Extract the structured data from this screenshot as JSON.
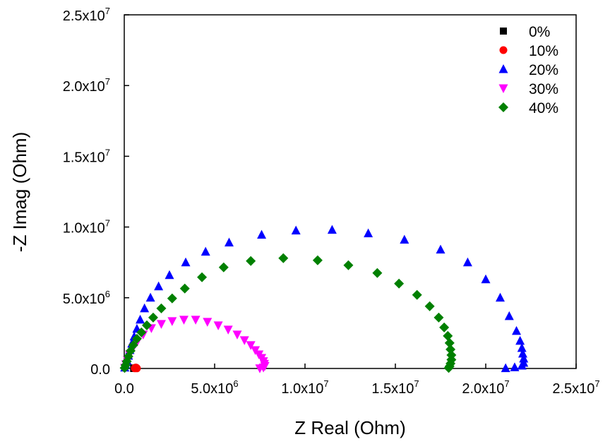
{
  "chart_data": {
    "type": "scatter",
    "title": "",
    "xlabel": "Z Real (Ohm)",
    "ylabel": "-Z Imag (Ohm)",
    "xlim": [
      0,
      25000000
    ],
    "ylim": [
      0,
      25000000
    ],
    "x_ticks": [
      {
        "value": 0,
        "mantissa": "0.0",
        "exp": ""
      },
      {
        "value": 5000000,
        "mantissa": "5.0x10",
        "exp": "6"
      },
      {
        "value": 10000000,
        "mantissa": "1.0x10",
        "exp": "7"
      },
      {
        "value": 15000000,
        "mantissa": "1.5x10",
        "exp": "7"
      },
      {
        "value": 20000000,
        "mantissa": "2.0x10",
        "exp": "7"
      },
      {
        "value": 25000000,
        "mantissa": "2.5x10",
        "exp": "7"
      }
    ],
    "y_ticks": [
      {
        "value": 0,
        "mantissa": "0.0",
        "exp": ""
      },
      {
        "value": 5000000,
        "mantissa": "5.0x10",
        "exp": "6"
      },
      {
        "value": 10000000,
        "mantissa": "1.0x10",
        "exp": "7"
      },
      {
        "value": 15000000,
        "mantissa": "1.5x10",
        "exp": "7"
      },
      {
        "value": 20000000,
        "mantissa": "2.0x10",
        "exp": "7"
      },
      {
        "value": 25000000,
        "mantissa": "2.5x10",
        "exp": "7"
      }
    ],
    "grid": false,
    "legend_position": "top-right",
    "series": [
      {
        "name": "0%",
        "color": "#000000",
        "marker": "square",
        "points": [
          [
            520000,
            0
          ],
          [
            530000,
            20000
          ],
          [
            545000,
            35000
          ],
          [
            560000,
            20000
          ],
          [
            575000,
            5000
          ]
        ]
      },
      {
        "name": "10%",
        "color": "#ff0000",
        "marker": "circle",
        "points": [
          [
            580000,
            10000
          ],
          [
            600000,
            50000
          ],
          [
            640000,
            70000
          ],
          [
            680000,
            45000
          ],
          [
            700000,
            10000
          ]
        ]
      },
      {
        "name": "20%",
        "color": "#0000ff",
        "marker": "triangle-up",
        "points": [
          [
            30000,
            60000
          ],
          [
            80000,
            250000
          ],
          [
            150000,
            550000
          ],
          [
            230000,
            900000
          ],
          [
            310000,
            1300000
          ],
          [
            420000,
            1750000
          ],
          [
            550000,
            2250000
          ],
          [
            700000,
            2800000
          ],
          [
            880000,
            3450000
          ],
          [
            1120000,
            4250000
          ],
          [
            1450000,
            5000000
          ],
          [
            1900000,
            5800000
          ],
          [
            2500000,
            6600000
          ],
          [
            3400000,
            7500000
          ],
          [
            4500000,
            8250000
          ],
          [
            5800000,
            8900000
          ],
          [
            7600000,
            9450000
          ],
          [
            9500000,
            9750000
          ],
          [
            11500000,
            9800000
          ],
          [
            13500000,
            9550000
          ],
          [
            15500000,
            9100000
          ],
          [
            17500000,
            8400000
          ],
          [
            19000000,
            7500000
          ],
          [
            20000000,
            6300000
          ],
          [
            20800000,
            5000000
          ],
          [
            21300000,
            3700000
          ],
          [
            21700000,
            2650000
          ],
          [
            21900000,
            1950000
          ],
          [
            22000000,
            1450000
          ],
          [
            22050000,
            1050000
          ],
          [
            22100000,
            700000
          ],
          [
            22100000,
            400000
          ],
          [
            22000000,
            200000
          ],
          [
            21600000,
            80000
          ],
          [
            21100000,
            20000
          ]
        ]
      },
      {
        "name": "30%",
        "color": "#ff00ff",
        "marker": "triangle-down",
        "points": [
          [
            30000,
            50000
          ],
          [
            90000,
            300000
          ],
          [
            180000,
            600000
          ],
          [
            300000,
            1000000
          ],
          [
            480000,
            1450000
          ],
          [
            720000,
            1900000
          ],
          [
            1050000,
            2400000
          ],
          [
            1500000,
            2850000
          ],
          [
            2050000,
            3150000
          ],
          [
            2650000,
            3350000
          ],
          [
            3300000,
            3450000
          ],
          [
            3950000,
            3450000
          ],
          [
            4600000,
            3300000
          ],
          [
            5200000,
            3050000
          ],
          [
            5750000,
            2750000
          ],
          [
            6250000,
            2400000
          ],
          [
            6650000,
            2000000
          ],
          [
            7000000,
            1650000
          ],
          [
            7250000,
            1300000
          ],
          [
            7450000,
            1000000
          ],
          [
            7600000,
            750000
          ],
          [
            7700000,
            520000
          ],
          [
            7750000,
            330000
          ],
          [
            7780000,
            180000
          ],
          [
            7700000,
            70000
          ],
          [
            7500000,
            15000
          ]
        ]
      },
      {
        "name": "40%",
        "color": "#008000",
        "marker": "diamond",
        "points": [
          [
            20000,
            40000
          ],
          [
            70000,
            230000
          ],
          [
            140000,
            500000
          ],
          [
            230000,
            850000
          ],
          [
            350000,
            1250000
          ],
          [
            500000,
            1650000
          ],
          [
            700000,
            2100000
          ],
          [
            950000,
            2550000
          ],
          [
            1250000,
            3050000
          ],
          [
            1600000,
            3600000
          ],
          [
            2050000,
            4250000
          ],
          [
            2650000,
            4950000
          ],
          [
            3350000,
            5650000
          ],
          [
            4300000,
            6450000
          ],
          [
            5500000,
            7150000
          ],
          [
            7000000,
            7600000
          ],
          [
            8800000,
            7800000
          ],
          [
            10700000,
            7650000
          ],
          [
            12400000,
            7300000
          ],
          [
            14000000,
            6750000
          ],
          [
            15200000,
            6000000
          ],
          [
            16200000,
            5200000
          ],
          [
            16900000,
            4400000
          ],
          [
            17400000,
            3600000
          ],
          [
            17700000,
            2900000
          ],
          [
            17900000,
            2300000
          ],
          [
            18000000,
            1800000
          ],
          [
            18050000,
            1350000
          ],
          [
            18100000,
            950000
          ],
          [
            18100000,
            620000
          ],
          [
            18050000,
            350000
          ],
          [
            18000000,
            150000
          ],
          [
            17950000,
            40000
          ]
        ]
      }
    ]
  }
}
